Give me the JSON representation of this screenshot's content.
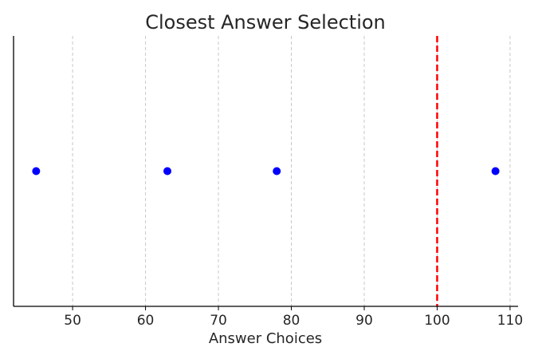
{
  "chart_data": {
    "type": "scatter",
    "title": "Closest Answer Selection",
    "xlabel": "Answer Choices",
    "ylabel": "",
    "xlim": [
      41.9,
      111.1
    ],
    "ylim": [
      -1,
      1
    ],
    "xticks": [
      50,
      60,
      70,
      80,
      90,
      100,
      110
    ],
    "grid": "vertical-dashed",
    "legend": "none",
    "series": [
      {
        "x": [
          45,
          63,
          78,
          108
        ],
        "y": [
          0,
          0,
          0,
          0
        ],
        "color": "#0000ff"
      }
    ],
    "reference_line": {
      "orientation": "vertical",
      "x": 100,
      "style": "dashed",
      "color": "#ff0000"
    },
    "grid_color": "#c8c8c8",
    "axis_color": "#000000"
  }
}
